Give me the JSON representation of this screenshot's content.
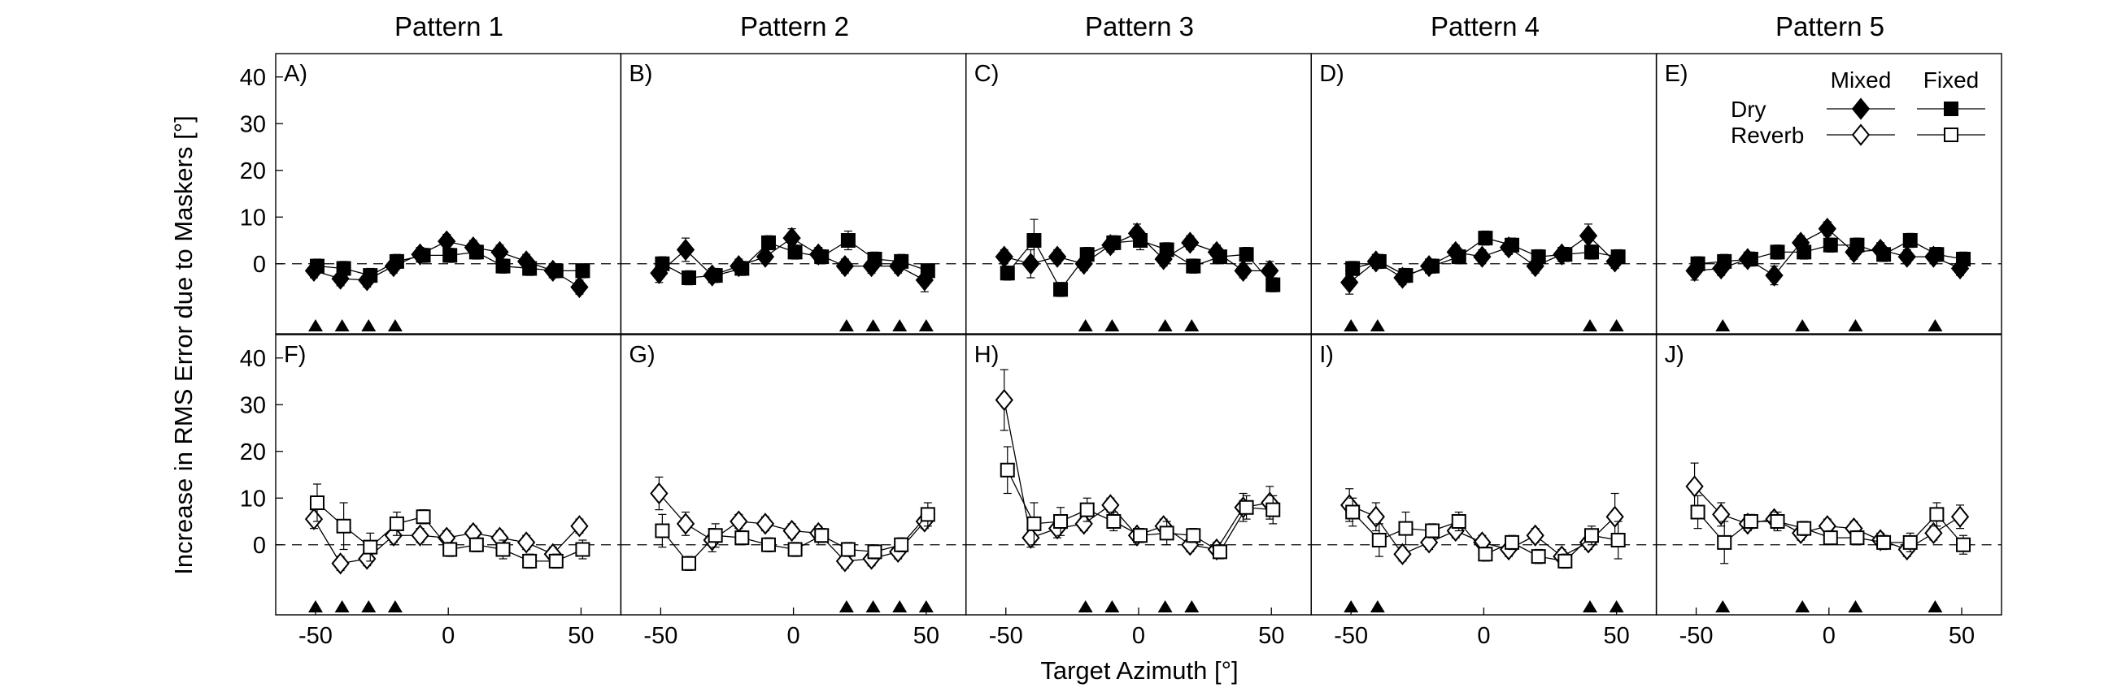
{
  "figure": {
    "xlabel": "Target Azimuth [°]",
    "ylabel": "Increase in RMS Error due to Maskers [°]",
    "column_titles": [
      "Pattern 1",
      "Pattern 2",
      "Pattern 3",
      "Pattern 4",
      "Pattern 5"
    ],
    "legend": {
      "col_headers": [
        "Mixed",
        "Fixed"
      ],
      "row_labels": [
        "Dry",
        "Reverb"
      ]
    }
  },
  "chart_data": [
    {
      "panel": "A)",
      "pattern": "Pattern 1",
      "condition": "Dry",
      "type": "scatter",
      "xlim": [
        -65,
        65
      ],
      "ylim": [
        -15,
        45
      ],
      "xticks": [
        -50,
        0,
        50
      ],
      "yticks": [
        0,
        10,
        20,
        30,
        40
      ],
      "masker_azimuths": [
        -50,
        -40,
        -30,
        -20
      ],
      "x": [
        -50,
        -40,
        -30,
        -20,
        -10,
        0,
        10,
        20,
        30,
        40,
        50
      ],
      "series": [
        {
          "name": "Mixed",
          "marker": "diamond-filled",
          "values": [
            -1.5,
            -3.2,
            -3.5,
            -0.5,
            2.0,
            4.8,
            3.5,
            2.5,
            0.5,
            -1.5,
            -5.0
          ],
          "errors": [
            1.5,
            1.5,
            1.5,
            1.5,
            1.5,
            1.5,
            1.5,
            1.5,
            1.5,
            1.5,
            1.5
          ]
        },
        {
          "name": "Fixed",
          "marker": "square-filled",
          "values": [
            -0.5,
            -1.0,
            -2.5,
            0.5,
            1.8,
            1.8,
            2.5,
            -0.5,
            -1.0,
            -1.5,
            -1.5
          ],
          "errors": [
            1.5,
            1.5,
            1.5,
            1.5,
            1.5,
            1.5,
            1.5,
            1.5,
            1.5,
            1.5,
            1.5
          ]
        }
      ]
    },
    {
      "panel": "B)",
      "pattern": "Pattern 2",
      "condition": "Dry",
      "type": "scatter",
      "xlim": [
        -65,
        65
      ],
      "ylim": [
        -15,
        45
      ],
      "xticks": [
        -50,
        0,
        50
      ],
      "yticks": [
        0,
        10,
        20,
        30,
        40
      ],
      "masker_azimuths": [
        20,
        30,
        40,
        50
      ],
      "x": [
        -50,
        -40,
        -30,
        -20,
        -10,
        0,
        10,
        20,
        30,
        40,
        50
      ],
      "series": [
        {
          "name": "Mixed",
          "marker": "diamond-filled",
          "values": [
            -2.0,
            3.0,
            -2.5,
            -0.5,
            1.5,
            5.5,
            2.0,
            -0.5,
            -0.5,
            -0.5,
            -3.5
          ],
          "errors": [
            2.0,
            2.5,
            1.5,
            1.5,
            1.5,
            2.0,
            1.5,
            1.5,
            1.5,
            1.5,
            2.5
          ]
        },
        {
          "name": "Fixed",
          "marker": "square-filled",
          "values": [
            0.0,
            -3.0,
            -2.5,
            -1.0,
            4.5,
            2.5,
            1.5,
            5.0,
            1.0,
            0.5,
            -1.5
          ],
          "errors": [
            1.5,
            1.5,
            1.5,
            1.5,
            1.5,
            1.5,
            1.5,
            2.0,
            1.5,
            1.5,
            1.5
          ]
        }
      ]
    },
    {
      "panel": "C)",
      "pattern": "Pattern 3",
      "condition": "Dry",
      "type": "scatter",
      "xlim": [
        -65,
        65
      ],
      "ylim": [
        -15,
        45
      ],
      "xticks": [
        -50,
        0,
        50
      ],
      "yticks": [
        0,
        10,
        20,
        30,
        40
      ],
      "masker_azimuths": [
        -20,
        -10,
        10,
        20
      ],
      "x": [
        -50,
        -40,
        -30,
        -20,
        -10,
        0,
        10,
        20,
        30,
        40,
        50
      ],
      "series": [
        {
          "name": "Mixed",
          "marker": "diamond-filled",
          "values": [
            1.5,
            0.0,
            1.5,
            0.0,
            4.0,
            6.5,
            1.0,
            4.5,
            2.5,
            -1.5,
            -1.5
          ],
          "errors": [
            1.5,
            3.0,
            1.5,
            1.5,
            1.5,
            2.0,
            1.5,
            1.5,
            1.5,
            1.5,
            2.0
          ]
        },
        {
          "name": "Fixed",
          "marker": "square-filled",
          "values": [
            -2.0,
            5.0,
            -5.5,
            2.0,
            4.5,
            5.0,
            3.0,
            -0.5,
            1.5,
            2.0,
            -4.5
          ],
          "errors": [
            1.5,
            4.5,
            1.5,
            1.5,
            1.5,
            2.0,
            1.5,
            1.5,
            1.5,
            1.5,
            1.5
          ]
        }
      ]
    },
    {
      "panel": "D)",
      "pattern": "Pattern 4",
      "condition": "Dry",
      "type": "scatter",
      "xlim": [
        -65,
        65
      ],
      "ylim": [
        -15,
        45
      ],
      "xticks": [
        -50,
        0,
        50
      ],
      "yticks": [
        0,
        10,
        20,
        30,
        40
      ],
      "masker_azimuths": [
        -50,
        -40,
        40,
        50
      ],
      "x": [
        -50,
        -40,
        -30,
        -20,
        -10,
        0,
        10,
        20,
        30,
        40,
        50
      ],
      "series": [
        {
          "name": "Mixed",
          "marker": "diamond-filled",
          "values": [
            -4.0,
            0.5,
            -3.0,
            -0.5,
            2.5,
            1.5,
            3.5,
            -0.5,
            2.0,
            6.0,
            0.5
          ],
          "errors": [
            2.5,
            1.5,
            1.5,
            1.5,
            1.5,
            1.5,
            1.5,
            1.5,
            1.5,
            2.5,
            1.5
          ]
        },
        {
          "name": "Fixed",
          "marker": "square-filled",
          "values": [
            -1.0,
            0.5,
            -2.5,
            -0.5,
            1.5,
            5.5,
            4.0,
            1.5,
            2.0,
            2.5,
            1.5
          ],
          "errors": [
            1.5,
            1.5,
            1.5,
            1.5,
            1.5,
            1.5,
            1.5,
            1.5,
            1.5,
            1.5,
            1.5
          ]
        }
      ]
    },
    {
      "panel": "E)",
      "pattern": "Pattern 5",
      "condition": "Dry",
      "type": "scatter",
      "xlim": [
        -65,
        65
      ],
      "ylim": [
        -15,
        45
      ],
      "xticks": [
        -50,
        0,
        50
      ],
      "yticks": [
        0,
        10,
        20,
        30,
        40
      ],
      "masker_azimuths": [
        -40,
        -10,
        10,
        40
      ],
      "x": [
        -50,
        -40,
        -30,
        -20,
        -10,
        0,
        10,
        20,
        30,
        40,
        50
      ],
      "series": [
        {
          "name": "Mixed",
          "marker": "diamond-filled",
          "values": [
            -1.5,
            -1.0,
            1.0,
            -2.5,
            4.5,
            7.5,
            2.5,
            3.0,
            1.5,
            1.5,
            -1.0
          ],
          "errors": [
            2.0,
            1.5,
            1.5,
            2.0,
            1.5,
            1.5,
            1.5,
            1.5,
            1.5,
            1.5,
            1.5
          ]
        },
        {
          "name": "Fixed",
          "marker": "square-filled",
          "values": [
            0.0,
            0.5,
            1.0,
            2.5,
            2.5,
            4.0,
            4.0,
            2.0,
            5.0,
            2.0,
            1.0
          ],
          "errors": [
            1.5,
            1.5,
            1.5,
            1.5,
            1.5,
            1.5,
            1.5,
            1.5,
            1.5,
            1.5,
            1.5
          ]
        }
      ]
    },
    {
      "panel": "F)",
      "pattern": "Pattern 1",
      "condition": "Reverb",
      "type": "scatter",
      "xlim": [
        -65,
        65
      ],
      "ylim": [
        -15,
        45
      ],
      "xticks": [
        -50,
        0,
        50
      ],
      "yticks": [
        0,
        10,
        20,
        30,
        40
      ],
      "masker_azimuths": [
        -50,
        -40,
        -30,
        -20
      ],
      "x": [
        -50,
        -40,
        -30,
        -20,
        -10,
        0,
        10,
        20,
        30,
        40,
        50
      ],
      "series": [
        {
          "name": "Mixed",
          "marker": "diamond-open",
          "values": [
            5.5,
            -4.0,
            -3.0,
            2.0,
            2.0,
            1.5,
            2.5,
            1.5,
            0.5,
            -2.0,
            4.0
          ],
          "errors": [
            2.0,
            1.5,
            1.5,
            1.5,
            1.5,
            1.5,
            1.5,
            1.5,
            1.5,
            1.5,
            1.5
          ]
        },
        {
          "name": "Fixed",
          "marker": "square-open",
          "values": [
            9.0,
            4.0,
            -0.5,
            4.5,
            6.0,
            -1.0,
            0.0,
            -1.0,
            -3.5,
            -3.5,
            -1.0
          ],
          "errors": [
            4.0,
            5.0,
            3.0,
            2.5,
            1.5,
            1.5,
            1.5,
            2.0,
            1.5,
            1.5,
            2.0
          ]
        }
      ]
    },
    {
      "panel": "G)",
      "pattern": "Pattern 2",
      "condition": "Reverb",
      "type": "scatter",
      "xlim": [
        -65,
        65
      ],
      "ylim": [
        -15,
        45
      ],
      "xticks": [
        -50,
        0,
        50
      ],
      "yticks": [
        0,
        10,
        20,
        30,
        40
      ],
      "masker_azimuths": [
        20,
        30,
        40,
        50
      ],
      "x": [
        -50,
        -40,
        -30,
        -20,
        -10,
        0,
        10,
        20,
        30,
        40,
        50
      ],
      "series": [
        {
          "name": "Mixed",
          "marker": "diamond-open",
          "values": [
            11.0,
            4.5,
            1.0,
            5.0,
            4.5,
            3.0,
            2.5,
            -3.5,
            -3.0,
            -1.5,
            5.0
          ],
          "errors": [
            3.5,
            2.5,
            2.5,
            1.5,
            1.5,
            1.5,
            1.5,
            1.5,
            1.5,
            1.5,
            1.5
          ]
        },
        {
          "name": "Fixed",
          "marker": "square-open",
          "values": [
            3.0,
            -4.0,
            2.0,
            1.5,
            0.0,
            -1.0,
            2.0,
            -1.0,
            -1.5,
            0.0,
            6.5
          ],
          "errors": [
            3.5,
            1.5,
            2.5,
            1.5,
            1.5,
            1.5,
            1.5,
            1.5,
            1.5,
            1.5,
            2.5
          ]
        }
      ]
    },
    {
      "panel": "H)",
      "pattern": "Pattern 3",
      "condition": "Reverb",
      "type": "scatter",
      "xlim": [
        -65,
        65
      ],
      "ylim": [
        -15,
        45
      ],
      "xticks": [
        -50,
        0,
        50
      ],
      "yticks": [
        0,
        10,
        20,
        30,
        40
      ],
      "masker_azimuths": [
        -20,
        -10,
        10,
        20
      ],
      "x": [
        -50,
        -40,
        -30,
        -20,
        -10,
        0,
        10,
        20,
        30,
        40,
        50
      ],
      "series": [
        {
          "name": "Mixed",
          "marker": "diamond-open",
          "values": [
            31.0,
            1.5,
            3.5,
            4.5,
            8.5,
            2.0,
            4.0,
            0.0,
            -1.0,
            8.0,
            9.0
          ],
          "errors": [
            6.5,
            2.0,
            2.0,
            1.5,
            1.5,
            1.5,
            1.5,
            1.5,
            1.5,
            3.0,
            3.5
          ]
        },
        {
          "name": "Fixed",
          "marker": "square-open",
          "values": [
            16.0,
            4.5,
            5.0,
            7.5,
            5.0,
            2.0,
            2.5,
            2.0,
            -1.5,
            8.0,
            7.5
          ],
          "errors": [
            5.0,
            4.5,
            3.0,
            2.5,
            2.0,
            1.5,
            2.5,
            1.5,
            1.5,
            2.5,
            3.0
          ]
        }
      ]
    },
    {
      "panel": "I)",
      "pattern": "Pattern 4",
      "condition": "Reverb",
      "type": "scatter",
      "xlim": [
        -65,
        65
      ],
      "ylim": [
        -15,
        45
      ],
      "xticks": [
        -50,
        0,
        50
      ],
      "yticks": [
        0,
        10,
        20,
        30,
        40
      ],
      "masker_azimuths": [
        -50,
        -40,
        40,
        50
      ],
      "x": [
        -50,
        -40,
        -30,
        -20,
        -10,
        0,
        10,
        20,
        30,
        40,
        50
      ],
      "series": [
        {
          "name": "Mixed",
          "marker": "diamond-open",
          "values": [
            8.5,
            6.0,
            -2.0,
            0.5,
            3.0,
            0.5,
            -1.0,
            2.0,
            -2.5,
            0.5,
            6.0
          ],
          "errors": [
            3.5,
            3.0,
            1.5,
            1.5,
            1.5,
            1.5,
            1.5,
            1.5,
            1.5,
            1.5,
            5.0
          ]
        },
        {
          "name": "Fixed",
          "marker": "square-open",
          "values": [
            7.0,
            1.0,
            3.5,
            3.0,
            5.0,
            -2.0,
            0.5,
            -2.5,
            -3.5,
            2.0,
            1.0
          ],
          "errors": [
            3.0,
            3.5,
            3.5,
            1.5,
            2.0,
            1.5,
            1.5,
            1.5,
            1.5,
            2.0,
            4.0
          ]
        }
      ]
    },
    {
      "panel": "J)",
      "pattern": "Pattern 5",
      "condition": "Reverb",
      "type": "scatter",
      "xlim": [
        -65,
        65
      ],
      "ylim": [
        -15,
        45
      ],
      "xticks": [
        -50,
        0,
        50
      ],
      "yticks": [
        0,
        10,
        20,
        30,
        40
      ],
      "masker_azimuths": [
        -40,
        -10,
        10,
        40
      ],
      "x": [
        -50,
        -40,
        -30,
        -20,
        -10,
        0,
        10,
        20,
        30,
        40,
        50
      ],
      "series": [
        {
          "name": "Mixed",
          "marker": "diamond-open",
          "values": [
            12.5,
            6.5,
            4.5,
            5.5,
            2.5,
            4.0,
            3.5,
            1.0,
            -1.0,
            2.5,
            6.0
          ],
          "errors": [
            5.0,
            2.5,
            1.5,
            1.5,
            1.5,
            1.5,
            1.5,
            1.5,
            1.5,
            1.5,
            2.5
          ]
        },
        {
          "name": "Fixed",
          "marker": "square-open",
          "values": [
            7.0,
            0.5,
            5.0,
            5.0,
            3.5,
            1.5,
            1.5,
            0.5,
            0.5,
            6.5,
            0.0
          ],
          "errors": [
            3.5,
            4.5,
            1.5,
            2.0,
            1.5,
            1.5,
            1.5,
            1.5,
            2.0,
            2.5,
            2.0
          ]
        }
      ]
    }
  ]
}
